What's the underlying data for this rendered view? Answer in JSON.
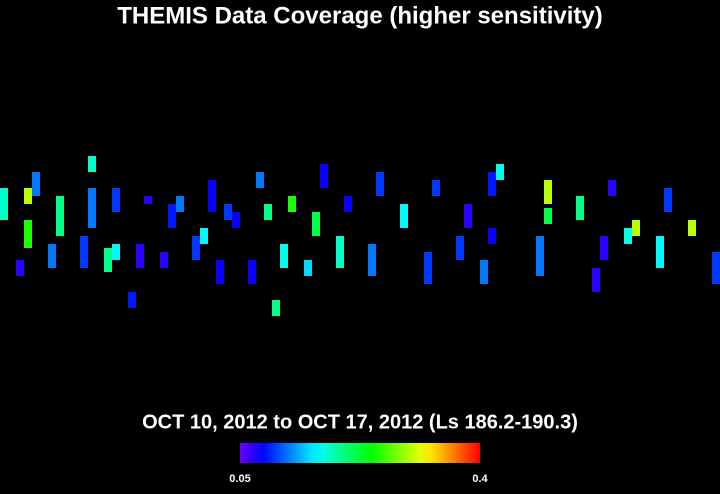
{
  "chart_data": {
    "type": "heatmap",
    "title": "THEMIS Data Coverage (higher sensitivity)",
    "subtitle": "OCT 10, 2012 to OCT 17, 2012 (Ls 186.2-190.3)",
    "clim": [
      0.05,
      0.4
    ],
    "cticks": [
      0.05,
      0.4
    ],
    "cells": [
      {
        "x": 0,
        "y": 23.5,
        "h": 4,
        "value": 0.18
      },
      {
        "x": 2,
        "y": 32.5,
        "h": 2,
        "value": 0.07
      },
      {
        "x": 3,
        "y": 23.5,
        "h": 2,
        "value": 0.3
      },
      {
        "x": 3,
        "y": 27.5,
        "h": 3.5,
        "value": 0.25
      },
      {
        "x": 4,
        "y": 21.5,
        "h": 3,
        "value": 0.12
      },
      {
        "x": 6,
        "y": 30.5,
        "h": 3,
        "value": 0.12
      },
      {
        "x": 7,
        "y": 24.5,
        "h": 5,
        "value": 0.2
      },
      {
        "x": 10,
        "y": 29.5,
        "h": 4,
        "value": 0.1
      },
      {
        "x": 11,
        "y": 19.5,
        "h": 2,
        "value": 0.18
      },
      {
        "x": 11,
        "y": 23.5,
        "h": 5,
        "value": 0.12
      },
      {
        "x": 13,
        "y": 31,
        "h": 3,
        "value": 0.2
      },
      {
        "x": 14,
        "y": 23.5,
        "h": 3,
        "value": 0.1
      },
      {
        "x": 14,
        "y": 30.5,
        "h": 2,
        "value": 0.16
      },
      {
        "x": 16,
        "y": 36.5,
        "h": 2,
        "value": 0.09
      },
      {
        "x": 17,
        "y": 30.5,
        "h": 3,
        "value": 0.07
      },
      {
        "x": 18,
        "y": 24.5,
        "h": 1,
        "value": 0.07
      },
      {
        "x": 20,
        "y": 31.5,
        "h": 2,
        "value": 0.07
      },
      {
        "x": 21,
        "y": 25.5,
        "h": 3,
        "value": 0.09
      },
      {
        "x": 22,
        "y": 24.5,
        "h": 2,
        "value": 0.12
      },
      {
        "x": 24,
        "y": 29.5,
        "h": 3,
        "value": 0.1
      },
      {
        "x": 25,
        "y": 28.5,
        "h": 2,
        "value": 0.16
      },
      {
        "x": 26,
        "y": 22.5,
        "h": 4,
        "value": 0.08
      },
      {
        "x": 27,
        "y": 32.5,
        "h": 3,
        "value": 0.08
      },
      {
        "x": 28,
        "y": 25.5,
        "h": 2,
        "value": 0.1
      },
      {
        "x": 29,
        "y": 26.5,
        "h": 2,
        "value": 0.08
      },
      {
        "x": 31,
        "y": 32.5,
        "h": 3,
        "value": 0.08
      },
      {
        "x": 32,
        "y": 21.5,
        "h": 2,
        "value": 0.12
      },
      {
        "x": 33,
        "y": 25.5,
        "h": 2,
        "value": 0.2
      },
      {
        "x": 34,
        "y": 37.5,
        "h": 2,
        "value": 0.2
      },
      {
        "x": 35,
        "y": 30.5,
        "h": 3,
        "value": 0.17
      },
      {
        "x": 36,
        "y": 24.5,
        "h": 2,
        "value": 0.25
      },
      {
        "x": 38,
        "y": 32.5,
        "h": 2,
        "value": 0.15
      },
      {
        "x": 39,
        "y": 26.5,
        "h": 3,
        "value": 0.22
      },
      {
        "x": 40,
        "y": 20.5,
        "h": 3,
        "value": 0.08
      },
      {
        "x": 42,
        "y": 29.5,
        "h": 4,
        "value": 0.18
      },
      {
        "x": 43,
        "y": 24.5,
        "h": 2,
        "value": 0.08
      },
      {
        "x": 46,
        "y": 30.5,
        "h": 4,
        "value": 0.12
      },
      {
        "x": 47,
        "y": 21.5,
        "h": 3,
        "value": 0.1
      },
      {
        "x": 50,
        "y": 25.5,
        "h": 3,
        "value": 0.16
      },
      {
        "x": 53,
        "y": 31.5,
        "h": 4,
        "value": 0.1
      },
      {
        "x": 54,
        "y": 22.5,
        "h": 2,
        "value": 0.1
      },
      {
        "x": 57,
        "y": 29.5,
        "h": 3,
        "value": 0.1
      },
      {
        "x": 58,
        "y": 25.5,
        "h": 3,
        "value": 0.07
      },
      {
        "x": 61,
        "y": 21.5,
        "h": 3,
        "value": 0.09
      },
      {
        "x": 60,
        "y": 32.5,
        "h": 3,
        "value": 0.12
      },
      {
        "x": 62,
        "y": 20.5,
        "h": 2,
        "value": 0.17
      },
      {
        "x": 61,
        "y": 28.5,
        "h": 2,
        "value": 0.08
      },
      {
        "x": 67,
        "y": 29.5,
        "h": 5,
        "value": 0.12
      },
      {
        "x": 68,
        "y": 22.5,
        "h": 3,
        "value": 0.3
      },
      {
        "x": 68,
        "y": 26,
        "h": 2,
        "value": 0.22
      },
      {
        "x": 72,
        "y": 24.5,
        "h": 3,
        "value": 0.2
      },
      {
        "x": 75,
        "y": 29.5,
        "h": 3,
        "value": 0.07
      },
      {
        "x": 74,
        "y": 33.5,
        "h": 3,
        "value": 0.07
      },
      {
        "x": 76,
        "y": 22.5,
        "h": 2,
        "value": 0.07
      },
      {
        "x": 78,
        "y": 28.5,
        "h": 2,
        "value": 0.17
      },
      {
        "x": 79,
        "y": 27.5,
        "h": 2,
        "value": 0.3
      },
      {
        "x": 82,
        "y": 29.5,
        "h": 4,
        "value": 0.16
      },
      {
        "x": 83,
        "y": 23.5,
        "h": 3,
        "value": 0.1
      },
      {
        "x": 86,
        "y": 27.5,
        "h": 2,
        "value": 0.3
      },
      {
        "x": 89,
        "y": 31.5,
        "h": 4,
        "value": 0.1
      }
    ]
  }
}
